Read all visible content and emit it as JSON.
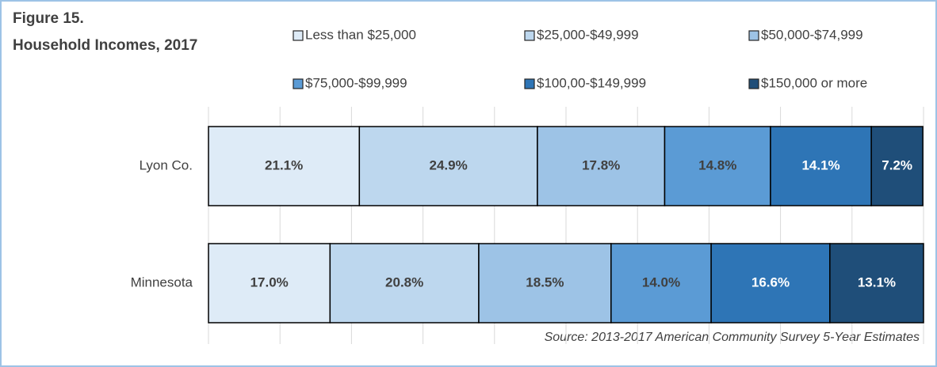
{
  "chart_data": {
    "type": "stacked-bar-horizontal",
    "title": "Figure 15.",
    "subtitle": "Household Incomes, 2017",
    "annotation": "Source: 2013-2017 American Community Survey 5-Year Estimates",
    "categories": [
      "Lyon Co.",
      "Minnesota"
    ],
    "series": [
      {
        "name": "Less than $25,000",
        "color": "#deebf7",
        "values": [
          21.1,
          17.0
        ],
        "value_labels": [
          "21.1%",
          "17.0%"
        ]
      },
      {
        "name": "$25,000-$49,999",
        "color": "#bdd7ee",
        "values": [
          24.9,
          20.8
        ],
        "value_labels": [
          "24.9%",
          "20.8%"
        ]
      },
      {
        "name": "$50,000-$74,999",
        "color": "#9dc3e6",
        "values": [
          17.8,
          18.5
        ],
        "value_labels": [
          "17.8%",
          "18.5%"
        ]
      },
      {
        "name": "$75,000-$99,999",
        "color": "#5b9bd5",
        "values": [
          14.8,
          14.0
        ],
        "value_labels": [
          "14.8%",
          "14.0%"
        ]
      },
      {
        "name": "$100,00-$149,999",
        "color": "#2e75b6",
        "values": [
          14.1,
          16.6
        ],
        "value_labels": [
          "14.1%",
          "16.6%"
        ]
      },
      {
        "name": "$150,000 or more",
        "color": "#1f4e79",
        "values": [
          7.2,
          13.1
        ],
        "value_labels": [
          "7.2%",
          "13.1%"
        ]
      }
    ],
    "xlim": [
      0,
      100
    ],
    "xticks": [
      0,
      10,
      20,
      30,
      40,
      50,
      60,
      70,
      80,
      90,
      100
    ],
    "grid": true,
    "legend": "top"
  }
}
